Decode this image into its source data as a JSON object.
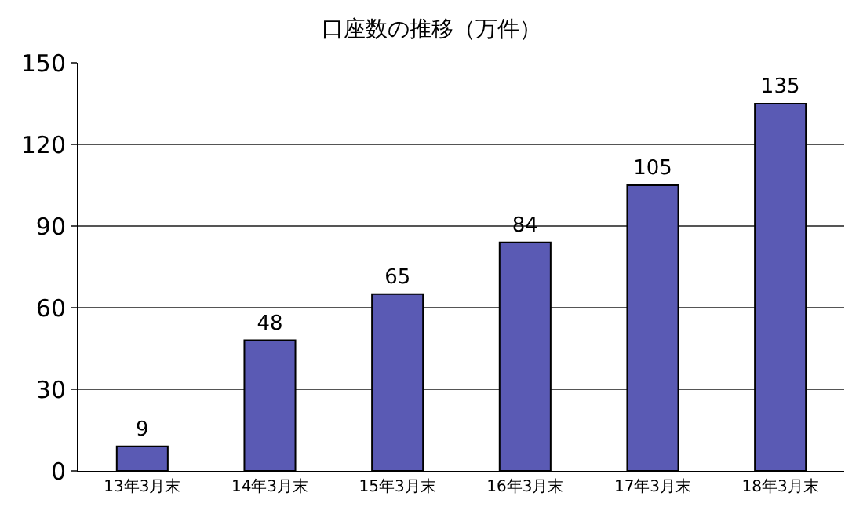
{
  "chart_data": {
    "type": "bar",
    "title": "口座数の推移（万件）",
    "categories": [
      "13年3月末",
      "14年3月末",
      "15年3月末",
      "16年3月末",
      "17年3月末",
      "18年3月末"
    ],
    "values": [
      9,
      48,
      65,
      84,
      105,
      135
    ],
    "color": "#5a5ab4",
    "ylim": [
      0,
      150
    ],
    "yticks": [
      0,
      30,
      60,
      90,
      120,
      150
    ],
    "grid": "y",
    "data_labels": true
  }
}
